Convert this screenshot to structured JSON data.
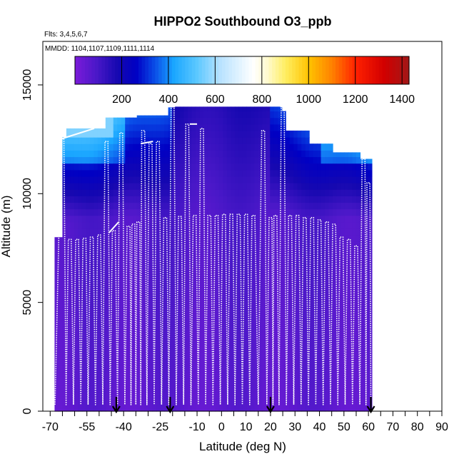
{
  "chart_data": {
    "type": "heatmap",
    "title": "HIPPO2 Southbound O3_ppb",
    "flights_label": "Flts: 3,4,5,6,7",
    "mmdd_label": "MMDD: 1104,1107,1109,1111,1114",
    "xlabel": "Latitude (deg N)",
    "ylabel": "Altitude (m)",
    "xlim": [
      -73,
      90
    ],
    "ylim": [
      0,
      17000
    ],
    "x_ticks": [
      -70,
      -55,
      -40,
      -25,
      -10,
      0,
      10,
      20,
      30,
      40,
      50,
      60,
      70,
      80,
      90
    ],
    "x_tick_labels": [
      "-70",
      "-55",
      "-40",
      "-25",
      "-10",
      "0",
      "10",
      "20",
      "30",
      "40",
      "50",
      "60",
      "70",
      "80",
      "90"
    ],
    "x_minor_ticks": [
      -65,
      -60,
      -50,
      -45,
      -35,
      -30,
      -20,
      -15,
      -5,
      5,
      15,
      25,
      35,
      45,
      55,
      65,
      75,
      85
    ],
    "y_ticks": [
      0,
      5000,
      10000,
      15000
    ],
    "y_tick_labels": [
      "0",
      "5000",
      "10000",
      "15000"
    ],
    "colorbar": {
      "range": [
        0,
        1430
      ],
      "ticks": [
        200,
        400,
        600,
        800,
        1000,
        1200,
        1400
      ],
      "tick_labels": [
        "200",
        "400",
        "600",
        "800",
        "1000",
        "1200",
        "1400"
      ],
      "stops": [
        {
          "v": 0,
          "c": "#7a1bd9"
        },
        {
          "v": 90,
          "c": "#4a18c8"
        },
        {
          "v": 180,
          "c": "#1608b0"
        },
        {
          "v": 260,
          "c": "#0000c4"
        },
        {
          "v": 340,
          "c": "#0a4ee8"
        },
        {
          "v": 420,
          "c": "#1aa6ff"
        },
        {
          "v": 520,
          "c": "#5cc8ff"
        },
        {
          "v": 620,
          "c": "#b8e2ff"
        },
        {
          "v": 760,
          "c": "#ffffff"
        },
        {
          "v": 820,
          "c": "#fffad0"
        },
        {
          "v": 900,
          "c": "#ffee60"
        },
        {
          "v": 1000,
          "c": "#ffc200"
        },
        {
          "v": 1100,
          "c": "#ff8000"
        },
        {
          "v": 1200,
          "c": "#ff2000"
        },
        {
          "v": 1320,
          "c": "#d20000"
        },
        {
          "v": 1430,
          "c": "#a01818"
        }
      ]
    },
    "surface_markers_lat": [
      -43,
      -21,
      20,
      61
    ],
    "flight_profile_tops_m": [
      {
        "lat": -65,
        "alt": 12500
      },
      {
        "lat": -62,
        "alt": 7900
      },
      {
        "lat": -59,
        "alt": 7900
      },
      {
        "lat": -56,
        "alt": 7950
      },
      {
        "lat": -53,
        "alt": 8000
      },
      {
        "lat": -50,
        "alt": 8100
      },
      {
        "lat": -47,
        "alt": 12400
      },
      {
        "lat": -44,
        "alt": 8300
      },
      {
        "lat": -41,
        "alt": 12800
      },
      {
        "lat": -38,
        "alt": 8500
      },
      {
        "lat": -36,
        "alt": 8600
      },
      {
        "lat": -34,
        "alt": 8700
      },
      {
        "lat": -32,
        "alt": 12900
      },
      {
        "lat": -29,
        "alt": 12300
      },
      {
        "lat": -26,
        "alt": 12400
      },
      {
        "lat": -23,
        "alt": 8900
      },
      {
        "lat": -20,
        "alt": 14000
      },
      {
        "lat": -17,
        "alt": 8950
      },
      {
        "lat": -14,
        "alt": 13200
      },
      {
        "lat": -11,
        "alt": 9000
      },
      {
        "lat": -8,
        "alt": 13000
      },
      {
        "lat": -5,
        "alt": 9000
      },
      {
        "lat": -2,
        "alt": 9000
      },
      {
        "lat": 1,
        "alt": 9050
      },
      {
        "lat": 4,
        "alt": 9050
      },
      {
        "lat": 7,
        "alt": 9050
      },
      {
        "lat": 10,
        "alt": 9050
      },
      {
        "lat": 13,
        "alt": 9000
      },
      {
        "lat": 17,
        "alt": 12900
      },
      {
        "lat": 20,
        "alt": 8900
      },
      {
        "lat": 22,
        "alt": 9000
      },
      {
        "lat": 25,
        "alt": 14000
      },
      {
        "lat": 28,
        "alt": 9000
      },
      {
        "lat": 31,
        "alt": 9000
      },
      {
        "lat": 34,
        "alt": 8900
      },
      {
        "lat": 37,
        "alt": 8900
      },
      {
        "lat": 40,
        "alt": 8800
      },
      {
        "lat": 43,
        "alt": 8700
      },
      {
        "lat": 46,
        "alt": 8600
      },
      {
        "lat": 49,
        "alt": 8000
      },
      {
        "lat": 52,
        "alt": 7900
      },
      {
        "lat": 55,
        "alt": 7600
      },
      {
        "lat": 58,
        "alt": 11600
      },
      {
        "lat": 60,
        "alt": 10500
      }
    ]
  }
}
